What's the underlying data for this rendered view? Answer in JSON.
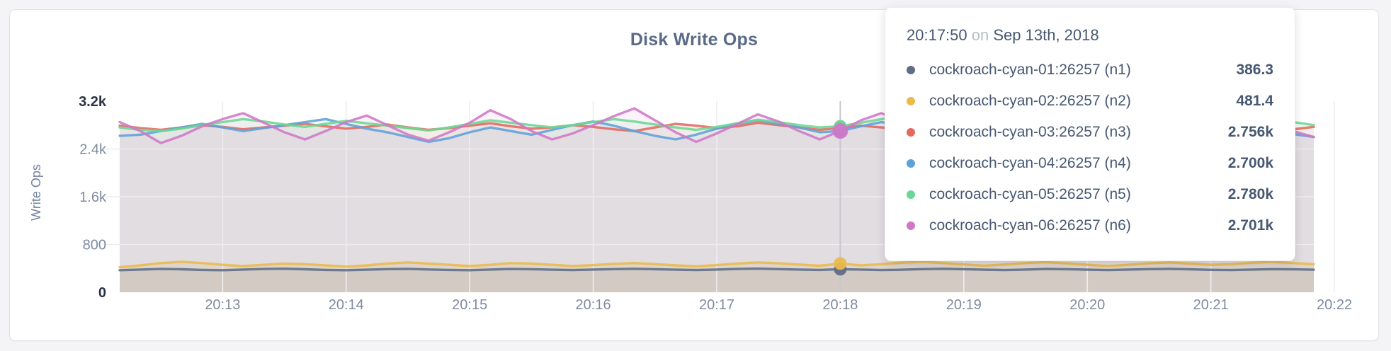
{
  "chart": {
    "title": "Disk Write Ops",
    "ylabel": "Write Ops"
  },
  "chart_data": {
    "type": "line",
    "title": "Disk Write Ops",
    "xlabel": "",
    "ylabel": "Write Ops",
    "ylim": [
      0,
      3200
    ],
    "grid": true,
    "x_start": "20:12:10",
    "x_end": "20:21:50",
    "sample_interval_s": 10,
    "x_ticks": [
      "20:13",
      "20:14",
      "20:15",
      "20:16",
      "20:17",
      "20:18",
      "20:19",
      "20:20",
      "20:21",
      "20:22"
    ],
    "y_ticks": [
      {
        "label": "0",
        "value": 0,
        "bold": true
      },
      {
        "label": "800",
        "value": 800,
        "bold": false
      },
      {
        "label": "1.6k",
        "value": 1600,
        "bold": false
      },
      {
        "label": "2.4k",
        "value": 2400,
        "bold": false
      },
      {
        "label": "3.2k",
        "value": 3200,
        "bold": true
      }
    ],
    "highlight": {
      "index": 35,
      "time": "20:17:50"
    },
    "series": [
      {
        "name": "cockroach-cyan-01:26257 (n1)",
        "color": "#5f6d87",
        "fill_opacity": 0.12,
        "dot_r": 9,
        "values": [
          370,
          380,
          390,
          385,
          375,
          370,
          380,
          390,
          395,
          385,
          375,
          370,
          378,
          388,
          392,
          382,
          374,
          370,
          380,
          390,
          386,
          378,
          372,
          380,
          388,
          394,
          386,
          378,
          372,
          380,
          390,
          396,
          388,
          380,
          374,
          386.3,
          380,
          372,
          378,
          388,
          394,
          386,
          378,
          372,
          380,
          390,
          386,
          378,
          372,
          380,
          388,
          392,
          384,
          376,
          372,
          380,
          388,
          384,
          378
        ]
      },
      {
        "name": "cockroach-cyan-02:26257 (n2)",
        "color": "#eaba4b",
        "fill_opacity": 0.16,
        "dot_r": 9,
        "values": [
          420,
          450,
          490,
          510,
          490,
          460,
          440,
          460,
          480,
          470,
          450,
          430,
          450,
          480,
          500,
          480,
          460,
          440,
          460,
          490,
          480,
          460,
          440,
          455,
          475,
          490,
          470,
          450,
          435,
          455,
          480,
          500,
          485,
          465,
          445,
          481.4,
          450,
          470,
          495,
          510,
          490,
          465,
          445,
          465,
          490,
          505,
          485,
          460,
          440,
          460,
          485,
          500,
          480,
          460,
          470,
          495,
          510,
          490,
          470
        ]
      },
      {
        "name": "cockroach-cyan-03:26257 (n3)",
        "color": "#e4695e",
        "fill_opacity": 0.09,
        "dot_r": 9,
        "values": [
          2790,
          2750,
          2720,
          2760,
          2800,
          2770,
          2730,
          2760,
          2790,
          2820,
          2780,
          2740,
          2770,
          2810,
          2760,
          2720,
          2750,
          2790,
          2830,
          2780,
          2740,
          2760,
          2800,
          2770,
          2730,
          2700,
          2760,
          2820,
          2790,
          2750,
          2780,
          2840,
          2800,
          2760,
          2720,
          2756,
          2790,
          2760,
          2730,
          2770,
          2810,
          2780,
          2750,
          2790,
          2760,
          2720,
          2760,
          2800,
          2770,
          2740,
          2780,
          2820,
          2790,
          2750,
          2770,
          2800,
          2760,
          2730,
          2770
        ]
      },
      {
        "name": "cockroach-cyan-04:26257 (n4)",
        "color": "#5fa2d8",
        "fill_opacity": 0.09,
        "dot_r": 9,
        "values": [
          2620,
          2640,
          2700,
          2760,
          2820,
          2760,
          2700,
          2750,
          2800,
          2850,
          2900,
          2820,
          2740,
          2680,
          2600,
          2520,
          2580,
          2680,
          2760,
          2700,
          2640,
          2720,
          2800,
          2860,
          2790,
          2700,
          2620,
          2560,
          2640,
          2740,
          2820,
          2880,
          2820,
          2760,
          2680,
          2700,
          2780,
          2850,
          2790,
          2700,
          2610,
          2560,
          2640,
          2730,
          2810,
          2760,
          2690,
          2620,
          2700,
          2790,
          2850,
          2780,
          2700,
          2640,
          2710,
          2790,
          2730,
          2650,
          2600
        ]
      },
      {
        "name": "cockroach-cyan-05:26257 (n5)",
        "color": "#6cd793",
        "fill_opacity": 0.09,
        "dot_r": 9,
        "values": [
          2760,
          2720,
          2700,
          2740,
          2800,
          2850,
          2900,
          2860,
          2810,
          2770,
          2820,
          2870,
          2830,
          2790,
          2750,
          2710,
          2760,
          2820,
          2880,
          2840,
          2800,
          2760,
          2800,
          2850,
          2900,
          2860,
          2810,
          2760,
          2720,
          2770,
          2830,
          2890,
          2850,
          2800,
          2760,
          2780,
          2840,
          2900,
          2950,
          2880,
          2820,
          2770,
          2730,
          2780,
          2840,
          2800,
          2750,
          2710,
          2760,
          2820,
          2870,
          2830,
          2780,
          2740,
          2790,
          2850,
          2900,
          2850,
          2800
        ]
      },
      {
        "name": "cockroach-cyan-06:26257 (n6)",
        "color": "#d077c7",
        "fill_opacity": 0.09,
        "dot_r": 11,
        "values": [
          2850,
          2700,
          2500,
          2620,
          2780,
          2900,
          3000,
          2840,
          2680,
          2560,
          2700,
          2850,
          2960,
          2800,
          2640,
          2540,
          2680,
          2840,
          3050,
          2900,
          2700,
          2560,
          2660,
          2800,
          2950,
          3080,
          2880,
          2680,
          2520,
          2660,
          2820,
          2980,
          2860,
          2700,
          2560,
          2701,
          2880,
          3000,
          2850,
          2700,
          2580,
          2700,
          2860,
          2960,
          2820,
          2660,
          2560,
          2700,
          2850,
          2950,
          2800,
          2650,
          2560,
          2700,
          2840,
          2950,
          2850,
          2700,
          2600
        ]
      }
    ]
  },
  "tooltip": {
    "time": "20:17:50",
    "on_word": "on",
    "date": "Sep 13th, 2018",
    "rows": [
      {
        "name": "cockroach-cyan-01:26257 (n1)",
        "value": "386.3",
        "color": "#5f6d87"
      },
      {
        "name": "cockroach-cyan-02:26257 (n2)",
        "value": "481.4",
        "color": "#eaba4b"
      },
      {
        "name": "cockroach-cyan-03:26257 (n3)",
        "value": "2.756k",
        "color": "#e4695e"
      },
      {
        "name": "cockroach-cyan-04:26257 (n4)",
        "value": "2.700k",
        "color": "#5fa2d8"
      },
      {
        "name": "cockroach-cyan-05:26257 (n5)",
        "value": "2.780k",
        "color": "#6cd793"
      },
      {
        "name": "cockroach-cyan-06:26257 (n6)",
        "value": "2.701k",
        "color": "#d077c7"
      }
    ]
  },
  "colors": {
    "page_bg": "#f4f4f6",
    "card_bg": "#ffffff",
    "card_border": "#e3e3e6",
    "title_text": "#5a6b87",
    "axis_text": "#7f8ba1",
    "axis_text_bold": "#2a3343",
    "grid_line": "#ededf0",
    "guideline": "#c6c7cc",
    "tooltip_text": "#475872",
    "tooltip_muted": "#b9bdc6"
  }
}
